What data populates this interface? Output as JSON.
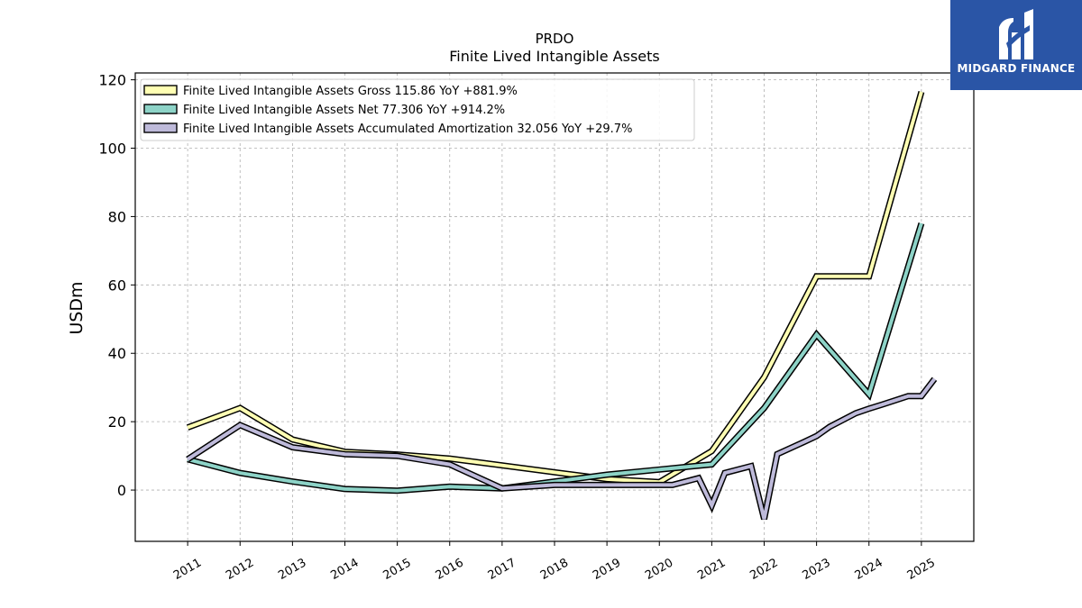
{
  "chart_data": {
    "type": "line",
    "title": "PRDO",
    "subtitle": "Finite Lived Intangible Assets",
    "ylabel": "USDm",
    "xlabel": "",
    "ylim": [
      -15,
      122
    ],
    "xlim": [
      2010.0,
      2026.0
    ],
    "yticks": [
      0,
      20,
      40,
      60,
      80,
      100,
      120
    ],
    "xticks": [
      "2011",
      "2012",
      "2013",
      "2014",
      "2015",
      "2016",
      "2017",
      "2018",
      "2019",
      "2020",
      "2021",
      "2022",
      "2023",
      "2024",
      "2025"
    ],
    "grid": true,
    "legend_position": "top-left",
    "series": [
      {
        "name": "Finite Lived Intangible Assets Gross",
        "legend": "Finite Lived Intangible Assets Gross  115.86 YoY +881.9%",
        "color": "#ffffb3",
        "x": [
          2011.0,
          2012.0,
          2013.0,
          2014.0,
          2015.0,
          2016.0,
          2017.0,
          2018.0,
          2019.0,
          2020.0,
          2021.0,
          2022.0,
          2023.0,
          2024.0,
          2025.0
        ],
        "y": [
          18.3,
          24.0,
          14.8,
          11.2,
          10.4,
          9.2,
          7.2,
          5.2,
          3.2,
          2.3,
          11.4,
          33.0,
          62.5,
          62.5,
          116.5
        ]
      },
      {
        "name": "Finite Lived Intangible Assets Net",
        "legend": "Finite Lived Intangible Assets Net  77.306 YoY +914.2%",
        "color": "#8dd3c7",
        "x": [
          2011.0,
          2012.0,
          2013.0,
          2014.0,
          2015.0,
          2016.0,
          2017.0,
          2018.0,
          2019.0,
          2020.0,
          2021.0,
          2022.0,
          2023.0,
          2024.0,
          2025.0
        ],
        "y": [
          9.0,
          5.0,
          2.5,
          0.3,
          -0.2,
          1.0,
          0.5,
          2.5,
          4.5,
          6.0,
          7.5,
          24.0,
          45.5,
          28.0,
          78.0
        ]
      },
      {
        "name": "Finite Lived Intangible Assets Accumulated Amortization",
        "legend": "Finite Lived Intangible Assets Accumulated Amortization  32.056 YoY +29.7%",
        "color": "#bebada",
        "x": [
          2011.0,
          2012.0,
          2013.0,
          2014.0,
          2015.0,
          2016.0,
          2017.0,
          2018.0,
          2019.0,
          2020.0,
          2020.25,
          2020.75,
          2021.0,
          2021.25,
          2021.75,
          2022.0,
          2022.25,
          2022.75,
          2023.0,
          2023.25,
          2023.75,
          2024.0,
          2024.25,
          2024.75,
          2025.0,
          2025.25
        ],
        "y": [
          9.0,
          19.0,
          12.5,
          10.5,
          10.0,
          7.5,
          0.5,
          1.5,
          1.5,
          1.5,
          1.5,
          3.5,
          -4.5,
          5.0,
          7.0,
          -8.5,
          10.5,
          14.0,
          15.8,
          18.5,
          22.5,
          23.8,
          25.0,
          27.5,
          27.5,
          32.5
        ]
      }
    ]
  },
  "logo": {
    "text": "MIDGARD FINANCE",
    "background": "#2a55a6"
  }
}
